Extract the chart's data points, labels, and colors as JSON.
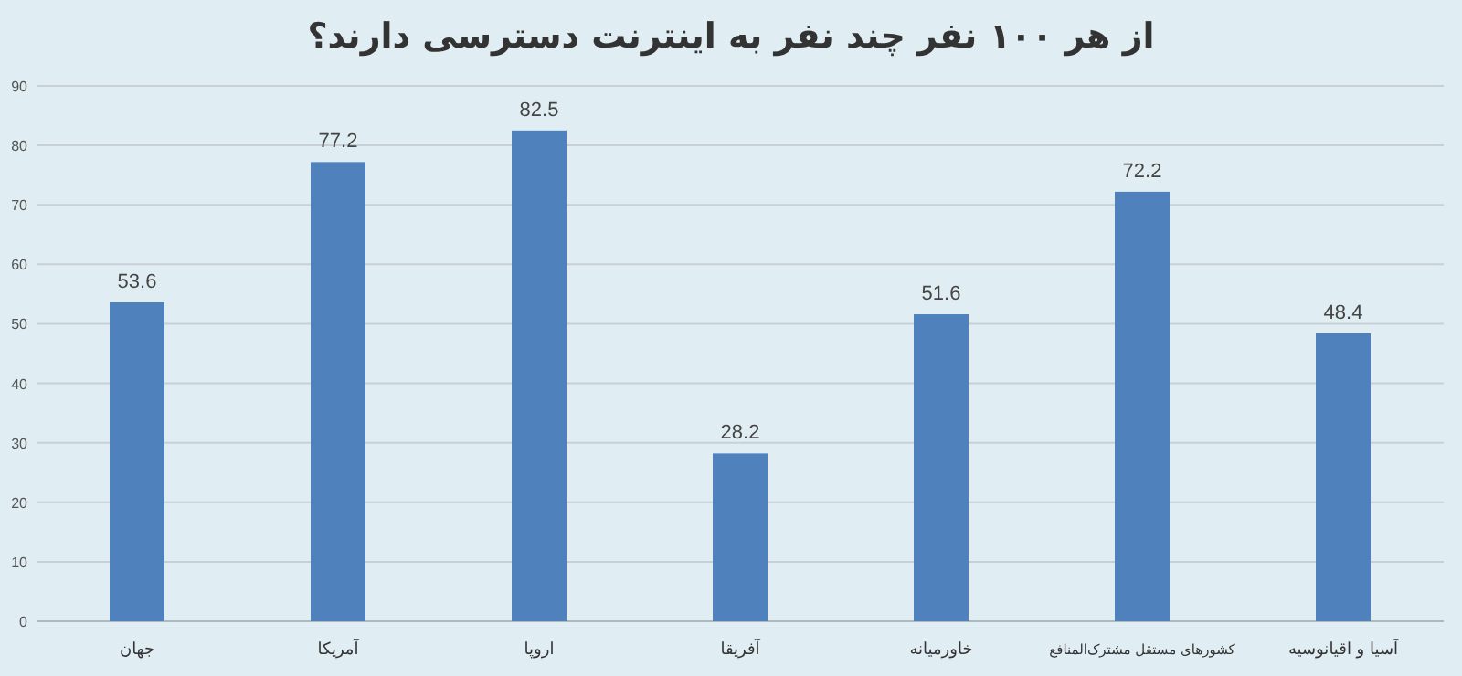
{
  "chart_data": {
    "type": "bar",
    "title": "از هر ۱۰۰ نفر چند نفر به اینترنت دسترسی دارند؟",
    "categories": [
      "جهان",
      "آمریکا",
      "اروپا",
      "آفریقا",
      "خاورمیانه",
      "کشورهای مستقل مشترک‌المنافع",
      "آسیا و اقیانوسیه"
    ],
    "values": [
      53.6,
      77.2,
      82.5,
      28.2,
      51.6,
      72.2,
      48.4
    ],
    "color": "#4f81bd",
    "ylim": [
      0,
      90
    ],
    "yticks": [
      0,
      10,
      20,
      30,
      40,
      50,
      60,
      70,
      80,
      90
    ],
    "grid": "y",
    "data_labels": true
  }
}
